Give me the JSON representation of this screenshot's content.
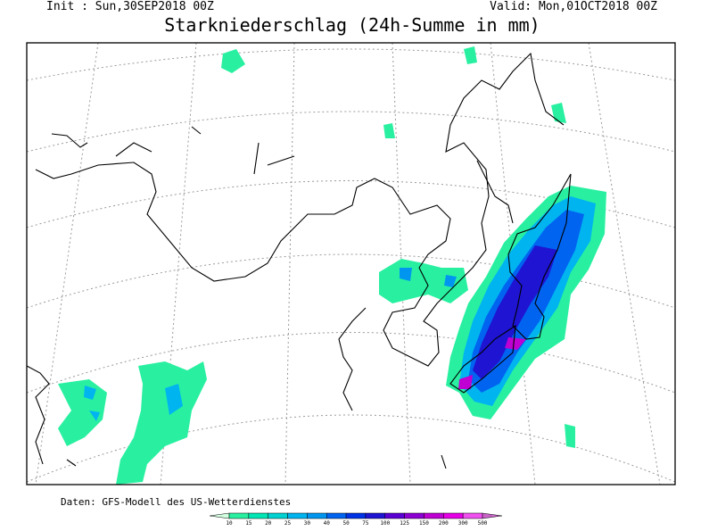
{
  "header": {
    "init": "Init : Sun,30SEP2018 00Z",
    "valid": "Valid: Mon,01OCT2018 00Z",
    "title": "Starkniederschlag (24h-Summe in mm)"
  },
  "footer": {
    "source": "Daten: GFS-Modell des US-Wetterdienstes"
  },
  "legend": {
    "levels": [
      10,
      15,
      20,
      25,
      30,
      40,
      50,
      75,
      100,
      125,
      150,
      200,
      300,
      500
    ],
    "colors": [
      "#d2ffe0",
      "#28f0a0",
      "#00e6b4",
      "#00d2d2",
      "#00b4f0",
      "#0096f0",
      "#0064f0",
      "#0032e6",
      "#1e14d2",
      "#5a00d2",
      "#8c00d2",
      "#be00d2",
      "#e600e6",
      "#f050f0",
      "#c864c8"
    ]
  }
}
